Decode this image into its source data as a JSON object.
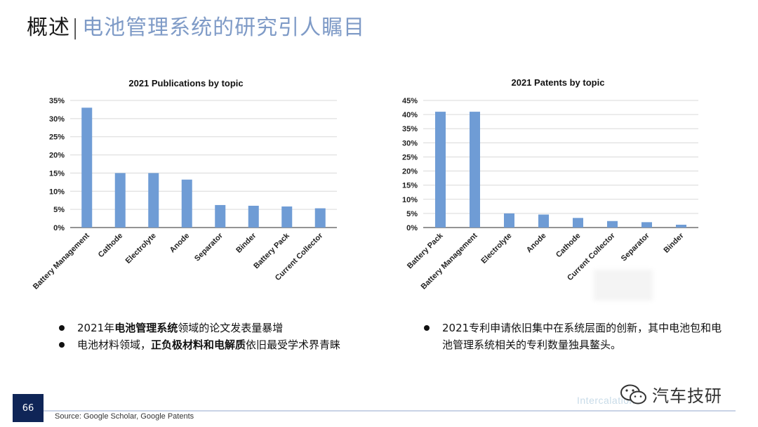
{
  "header": {
    "prefix": "概述",
    "separator": "|",
    "title": "电池管理系统的研究引人瞩目"
  },
  "chart_data": [
    {
      "type": "bar",
      "title": "2021 Publications by topic",
      "categories": [
        "Battery Management",
        "Cathode",
        "Electrolyte",
        "Anode",
        "Separator",
        "Binder",
        "Battery Pack",
        "Current Collector"
      ],
      "values": [
        33,
        15,
        15,
        13.2,
        6.2,
        6.0,
        5.8,
        5.3
      ],
      "ylim": [
        0,
        35
      ],
      "yticks": [
        "0%",
        "5%",
        "10%",
        "15%",
        "20%",
        "25%",
        "30%",
        "35%"
      ],
      "grid": true,
      "bar_color": "#6f9cd5"
    },
    {
      "type": "bar",
      "title": "2021 Patents by topic",
      "categories": [
        "Battery Pack",
        "Battery Management",
        "Electrolyte",
        "Anode",
        "Cathode",
        "Current Collector",
        "Separator",
        "Binder"
      ],
      "values": [
        41,
        41,
        5.0,
        4.6,
        3.4,
        2.3,
        1.9,
        1.0
      ],
      "ylim": [
        0,
        45
      ],
      "yticks": [
        "0%",
        "5%",
        "10%",
        "15%",
        "20%",
        "25%",
        "30%",
        "35%",
        "40%",
        "45%"
      ],
      "grid": true,
      "bar_color": "#6f9cd5"
    }
  ],
  "bullets_left": [
    {
      "parts": [
        {
          "text": "2021年",
          "bold": false
        },
        {
          "text": "电池管理系统",
          "bold": true
        },
        {
          "text": "领域的论文发表量暴增",
          "bold": false
        }
      ]
    },
    {
      "parts": [
        {
          "text": "电池材料领域，",
          "bold": false
        },
        {
          "text": "正负极材料和电解质",
          "bold": true
        },
        {
          "text": "依旧最受学术界青睐",
          "bold": false
        }
      ]
    }
  ],
  "bullets_right": [
    {
      "parts": [
        {
          "text": "2021专利申请依旧集中在系统层面的创新，其中电池包和电池管理系统相关的专利数量独具鳌头。",
          "bold": false
        }
      ]
    }
  ],
  "footer": {
    "page_number": "66",
    "source": "Source: Google Scholar, Google Patents",
    "watermark": "Intercalation",
    "brand": "汽车技研",
    "brand_icon": "wechat-icon"
  }
}
